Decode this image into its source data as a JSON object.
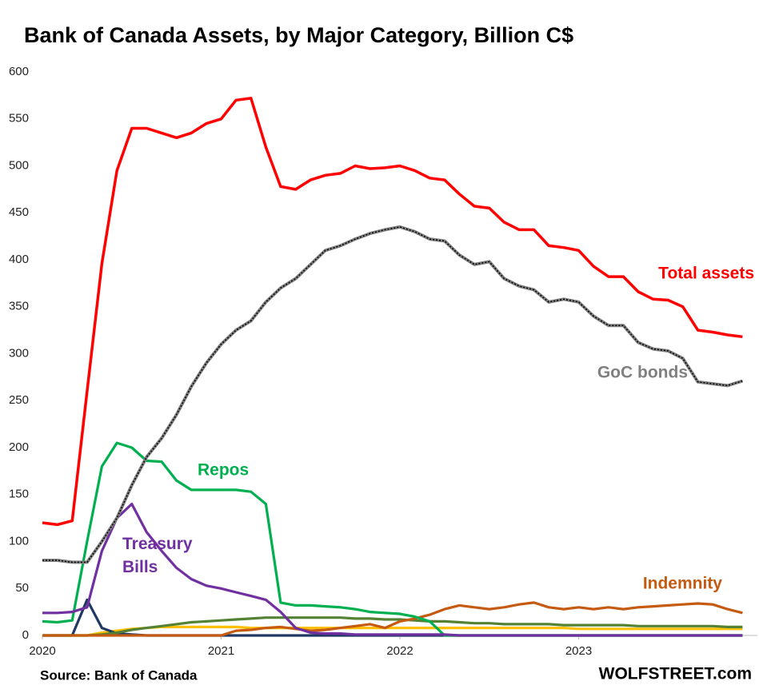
{
  "chart_data": {
    "type": "line",
    "title": "Bank of Canada Assets, by Major Category, Billion C$",
    "source": "Source: Bank of Canada",
    "credit": "WOLFSTREET.com",
    "x": [
      2020,
      2020.083,
      2020.167,
      2020.25,
      2020.333,
      2020.417,
      2020.5,
      2020.583,
      2020.667,
      2020.75,
      2020.833,
      2020.917,
      2021,
      2021.083,
      2021.167,
      2021.25,
      2021.333,
      2021.417,
      2021.5,
      2021.583,
      2021.667,
      2021.75,
      2021.833,
      2021.917,
      2022,
      2022.083,
      2022.167,
      2022.25,
      2022.333,
      2022.417,
      2022.5,
      2022.583,
      2022.667,
      2022.75,
      2022.833,
      2022.917,
      2023,
      2023.083,
      2023.167,
      2023.25,
      2023.333,
      2023.417,
      2023.5,
      2023.583,
      2023.667,
      2023.75,
      2023.833,
      2023.917
    ],
    "xlim": [
      2020,
      2024
    ],
    "xticks": [
      2020,
      2021,
      2022,
      2023
    ],
    "ylim": [
      0,
      600
    ],
    "yticks": [
      0,
      50,
      100,
      150,
      200,
      250,
      300,
      350,
      400,
      450,
      500,
      550,
      600
    ],
    "grid": false,
    "series": [
      {
        "color": "#ffc000",
        "values": [
          0,
          0,
          0,
          0,
          3,
          5,
          7,
          8,
          9,
          9,
          9,
          9,
          9,
          9,
          8,
          8,
          8,
          8,
          8,
          8,
          8,
          8,
          8,
          8,
          8,
          8,
          8,
          8,
          8,
          8,
          8,
          8,
          8,
          8,
          8,
          8,
          7,
          7,
          7,
          7,
          7,
          7,
          7,
          7,
          7,
          7,
          7,
          7
        ]
      },
      {
        "color": "#203864",
        "values": [
          0,
          0,
          0,
          38,
          8,
          2,
          1,
          0,
          0,
          0,
          0,
          0,
          0,
          0,
          0,
          0,
          0,
          0,
          0,
          0,
          0,
          0,
          0,
          0,
          0,
          0,
          0,
          0,
          0,
          0,
          0,
          0,
          0,
          0,
          0,
          0,
          0,
          0,
          0,
          0,
          0,
          0,
          0,
          0,
          0,
          0,
          0,
          0
        ]
      },
      {
        "color": "#548235",
        "values": [
          0,
          0,
          0,
          0,
          1,
          3,
          6,
          8,
          10,
          12,
          14,
          15,
          16,
          17,
          18,
          19,
          19,
          19,
          19,
          19,
          19,
          18,
          18,
          17,
          17,
          16,
          15,
          15,
          14,
          13,
          13,
          12,
          12,
          12,
          12,
          11,
          11,
          11,
          11,
          11,
          10,
          10,
          10,
          10,
          10,
          10,
          9,
          9
        ]
      },
      {
        "name": "Indemnity",
        "color": "#c55a11",
        "values": [
          0,
          0,
          0,
          0,
          0,
          0,
          0,
          0,
          0,
          0,
          0,
          0,
          0,
          5,
          6,
          8,
          9,
          7,
          5,
          6,
          8,
          10,
          12,
          8,
          15,
          18,
          22,
          28,
          32,
          30,
          28,
          30,
          33,
          35,
          30,
          28,
          30,
          28,
          30,
          28,
          30,
          31,
          32,
          33,
          34,
          33,
          28,
          24
        ]
      },
      {
        "name": "Repos",
        "color": "#00b050",
        "values": [
          15,
          14,
          16,
          100,
          180,
          205,
          200,
          186,
          185,
          165,
          155,
          155,
          155,
          155,
          153,
          140,
          35,
          32,
          32,
          31,
          30,
          28,
          25,
          24,
          23,
          20,
          15,
          0,
          0,
          0,
          0,
          0,
          0,
          0,
          0,
          0,
          0,
          0,
          0,
          0,
          0,
          0,
          0,
          0,
          0,
          0,
          0,
          0
        ]
      },
      {
        "name": "Treasury Bills",
        "color": "#7030a0",
        "values": [
          24,
          24,
          25,
          30,
          90,
          125,
          140,
          110,
          90,
          72,
          60,
          53,
          50,
          46,
          42,
          38,
          25,
          8,
          3,
          2,
          2,
          1,
          1,
          1,
          1,
          1,
          1,
          1,
          0,
          0,
          0,
          0,
          0,
          0,
          0,
          0,
          0,
          0,
          0,
          0,
          0,
          0,
          0,
          0,
          0,
          0,
          0,
          0
        ]
      },
      {
        "name": "GoC bonds",
        "color": "#808080",
        "values": [
          80,
          80,
          78,
          78,
          100,
          125,
          160,
          190,
          210,
          235,
          265,
          290,
          310,
          325,
          335,
          355,
          370,
          380,
          395,
          410,
          415,
          422,
          428,
          432,
          435,
          430,
          422,
          420,
          405,
          395,
          398,
          380,
          372,
          368,
          355,
          358,
          355,
          340,
          330,
          330,
          312,
          305,
          303,
          295,
          270,
          268,
          266,
          271
        ]
      },
      {
        "name": "Total assets",
        "color": "#ff0000",
        "values": [
          120,
          118,
          122,
          260,
          396,
          495,
          540,
          540,
          535,
          530,
          535,
          545,
          550,
          570,
          572,
          520,
          478,
          475,
          485,
          490,
          492,
          500,
          497,
          498,
          500,
          495,
          487,
          485,
          470,
          457,
          455,
          440,
          432,
          432,
          415,
          413,
          410,
          393,
          382,
          382,
          366,
          358,
          357,
          350,
          325,
          323,
          320,
          318
        ]
      }
    ]
  }
}
